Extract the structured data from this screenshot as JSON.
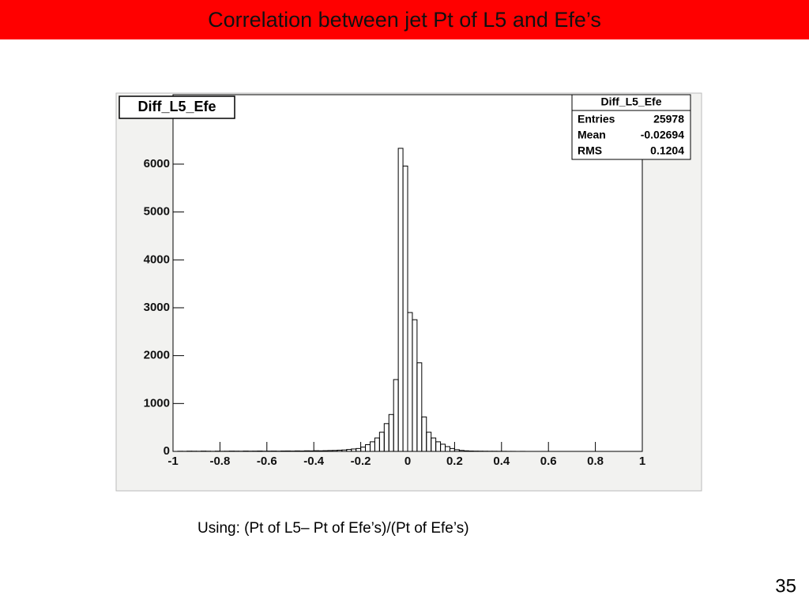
{
  "slide_title": "Correlation between jet Pt of L5 and Efe’s",
  "chart_data": {
    "type": "histogram",
    "title": "Diff_L5_Efe",
    "bins": [
      -1,
      -0.98,
      -0.96,
      -0.94,
      -0.92,
      -0.9,
      -0.88,
      -0.86,
      -0.84,
      -0.82,
      -0.8,
      -0.78,
      -0.76,
      -0.74,
      -0.72,
      -0.7,
      -0.68,
      -0.66,
      -0.64,
      -0.62,
      -0.6,
      -0.58,
      -0.56,
      -0.54,
      -0.52,
      -0.5,
      -0.48,
      -0.46,
      -0.44,
      -0.42,
      -0.4,
      -0.38,
      -0.36,
      -0.34,
      -0.32,
      -0.3,
      -0.28,
      -0.26,
      -0.24,
      -0.22,
      -0.2,
      -0.18,
      -0.16,
      -0.14,
      -0.12,
      -0.1,
      -0.08,
      -0.06,
      -0.04,
      -0.02,
      0,
      0.02,
      0.04,
      0.06,
      0.08,
      0.1,
      0.12,
      0.14,
      0.16,
      0.18,
      0.2,
      0.22,
      0.24,
      0.26,
      0.28,
      0.3,
      0.32,
      0.34,
      0.36,
      0.38,
      0.4,
      0.42,
      0.44,
      0.46,
      0.48,
      0.5,
      0.52,
      0.54,
      0.56,
      0.58,
      0.6,
      0.62,
      0.64,
      0.66,
      0.68,
      0.7,
      0.72,
      0.74,
      0.76,
      0.78,
      0.8,
      0.82,
      0.84,
      0.86,
      0.88,
      0.9,
      0.92,
      0.94,
      0.96,
      0.98,
      1
    ],
    "values": [
      0,
      3,
      2,
      5,
      4,
      3,
      6,
      4,
      2,
      5,
      3,
      4,
      6,
      5,
      4,
      7,
      5,
      6,
      8,
      5,
      6,
      7,
      5,
      8,
      9,
      7,
      10,
      8,
      12,
      10,
      14,
      12,
      15,
      18,
      20,
      25,
      30,
      40,
      50,
      60,
      90,
      140,
      200,
      280,
      400,
      580,
      770,
      1500,
      6330,
      5960,
      2900,
      2750,
      1850,
      720,
      400,
      280,
      200,
      150,
      100,
      60,
      35,
      20,
      12,
      8,
      6,
      5,
      4,
      3,
      3,
      2,
      2,
      1,
      1,
      0,
      1,
      0,
      0,
      0,
      0,
      0,
      0,
      0,
      0,
      0,
      0,
      0,
      0,
      0,
      0,
      0,
      0,
      0,
      0,
      0,
      0,
      0,
      0,
      0,
      0,
      0
    ],
    "color": "#000000",
    "xlim": [
      -1,
      1
    ],
    "xticks": [
      -1,
      -0.8,
      -0.6,
      -0.4,
      -0.2,
      0,
      0.2,
      0.4,
      0.6,
      0.8,
      1
    ],
    "ylim": [
      0,
      7450
    ],
    "yticks": [
      0,
      1000,
      2000,
      3000,
      4000,
      5000,
      6000
    ],
    "stats": {
      "title": "Diff_L5_Efe",
      "rows": [
        [
          "Entries",
          25978
        ],
        [
          "Mean",
          -0.02694
        ],
        [
          "RMS",
          0.1204
        ]
      ]
    }
  },
  "caption": "Using: (Pt of L5– Pt of Efe’s)/(Pt of Efe’s)",
  "page_number": "35"
}
